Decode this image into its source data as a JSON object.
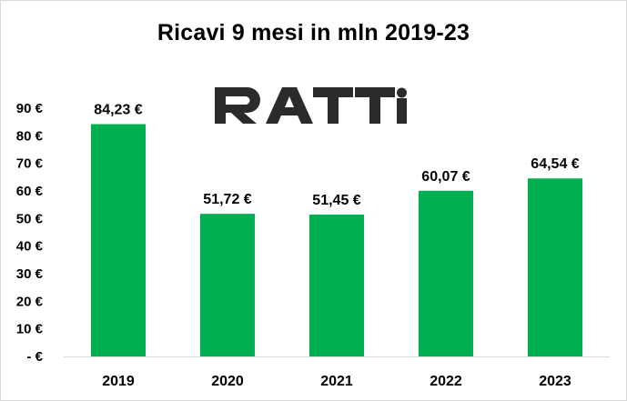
{
  "chart_data": {
    "type": "bar",
    "title": "Ricavi 9 mesi in mln 2019-23",
    "categories": [
      "2019",
      "2020",
      "2021",
      "2022",
      "2023"
    ],
    "values": [
      84.23,
      51.72,
      51.45,
      60.07,
      64.54
    ],
    "data_labels": [
      "84,23 €",
      "51,72 €",
      "51,45 €",
      "60,07 €",
      "64,54 €"
    ],
    "y_ticks": [
      0,
      10,
      20,
      30,
      40,
      50,
      60,
      70,
      80,
      90
    ],
    "y_tick_labels": [
      "- €",
      "10 €",
      "20 €",
      "30 €",
      "40 €",
      "50 €",
      "60 €",
      "70 €",
      "80 €",
      "90 €"
    ],
    "ylim": [
      0,
      90
    ],
    "grid": false,
    "legend": "none",
    "bar_color": "#00b050",
    "logo_text": "RATTI"
  }
}
